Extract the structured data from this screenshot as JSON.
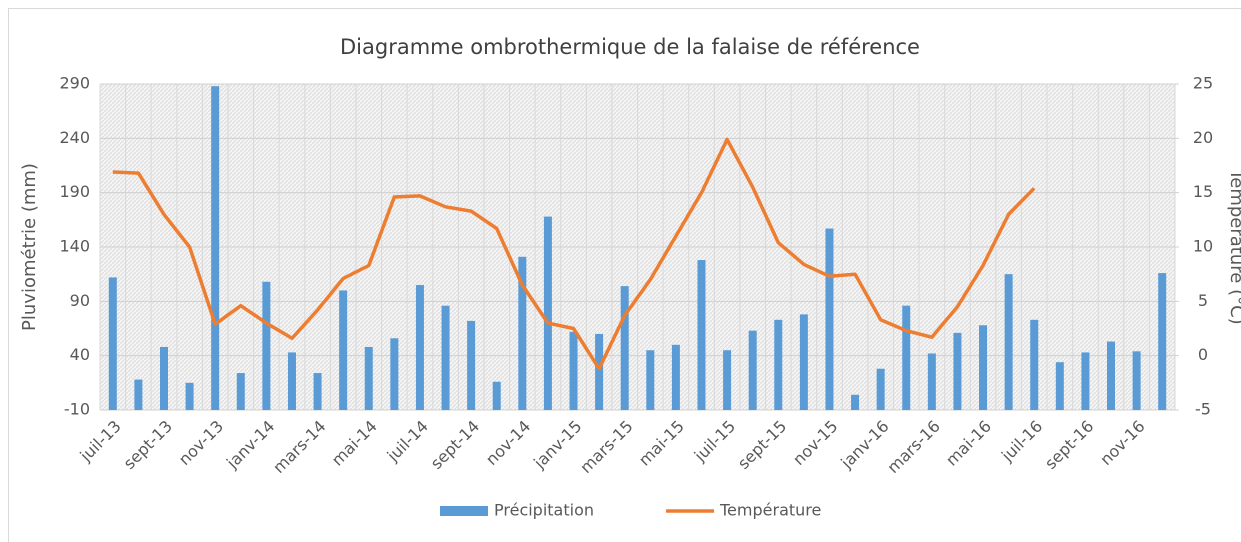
{
  "chart_data": {
    "type": "bar",
    "title": "Diagramme ombrothermique de la falaise de référence",
    "ylabel": "Pluviométrie (mm)",
    "y2label": "Température (°C)",
    "categories": [
      "juil-13",
      null,
      "sept-13",
      null,
      "nov-13",
      null,
      "janv-14",
      null,
      "mars-14",
      null,
      "mai-14",
      null,
      "juil-14",
      null,
      "sept-14",
      null,
      "nov-14",
      null,
      "janv-15",
      null,
      "mars-15",
      null,
      "mai-15",
      null,
      "juil-15",
      null,
      "sept-15",
      null,
      "nov-15",
      null,
      "janv-16",
      null,
      "mars-16",
      null,
      "mai-16",
      null,
      "juil-16",
      null,
      "sept-16",
      null,
      "nov-16",
      null
    ],
    "series": [
      {
        "name": "Précipitation",
        "type": "bar",
        "color": "#5b9bd5",
        "values": [
          112,
          18,
          48,
          15,
          288,
          24,
          108,
          43,
          24,
          100,
          48,
          56,
          105,
          86,
          72,
          16,
          131,
          168,
          62,
          60,
          104,
          45,
          50,
          128,
          45,
          63,
          73,
          78,
          157,
          4,
          28,
          86,
          42,
          61,
          68,
          115,
          73,
          34,
          43,
          53,
          44,
          116
        ]
      },
      {
        "name": "Température",
        "type": "line",
        "axis": "y2",
        "color": "#ed7d31",
        "values": [
          16.9,
          16.8,
          13,
          10,
          2.9,
          4.6,
          3,
          1.6,
          4.2,
          7.1,
          8.3,
          14.6,
          14.7,
          13.7,
          13.3,
          11.7,
          6.5,
          3,
          2.5,
          -1.2,
          3.7,
          7,
          11,
          15,
          19.9,
          15.5,
          10.4,
          8.4,
          7.3,
          7.5,
          3.3,
          2.3,
          1.7,
          4.5,
          8.3,
          13,
          15.4,
          null,
          null,
          null,
          null,
          null
        ]
      }
    ],
    "ylim": [
      -10,
      290
    ],
    "yticks": [
      -10,
      40,
      90,
      140,
      190,
      240,
      290
    ],
    "y2lim": [
      -5,
      25
    ],
    "y2ticks": [
      -5,
      0,
      5,
      10,
      15,
      20,
      25
    ],
    "grid": true,
    "legend": "bottom"
  }
}
